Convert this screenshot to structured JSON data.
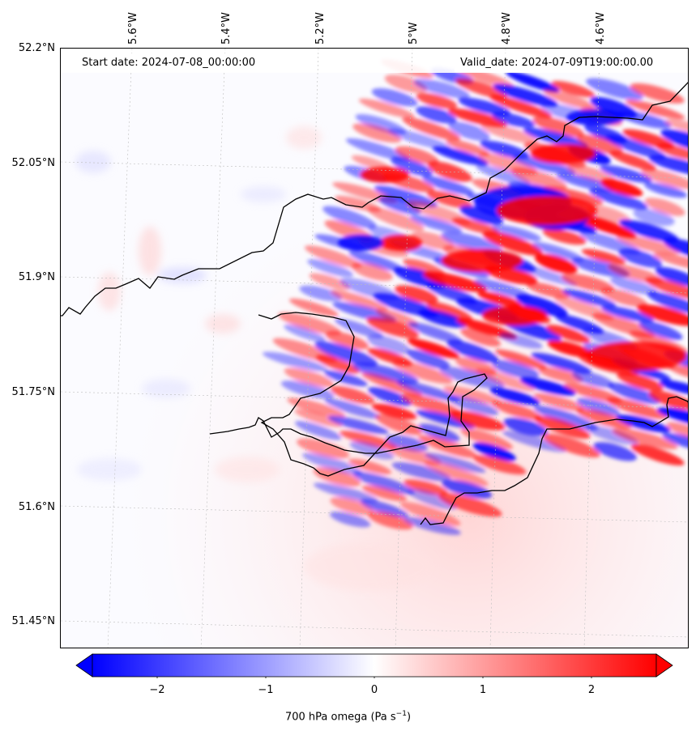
{
  "map": {
    "start_date": "Start date: 2024-07-08_00:00:00",
    "valid_date": "Valid_date: 2024-07-09T19:00:00.00",
    "lon_labels": [
      "5.6°W",
      "5.4°W",
      "5.2°W",
      "5°W",
      "4.8°W",
      "4.6°W"
    ],
    "lat_labels": [
      "52.2°N",
      "52.05°N",
      "51.9°N",
      "51.75°N",
      "51.6°N",
      "51.45°N"
    ],
    "field": "700 hPa omega",
    "colormap": "bwr",
    "negative_color": "#0000ff",
    "positive_color": "#ff0000",
    "neutral_color": "#ffffff",
    "coastline_color": "#000000"
  },
  "colorbar": {
    "ticks": [
      "−2",
      "−1",
      "0",
      "1",
      "2"
    ],
    "label": "700 hPa omega (Pa s",
    "label_sup": "−1",
    "label_end": ")",
    "range": [
      -2.5,
      2.5
    ]
  }
}
